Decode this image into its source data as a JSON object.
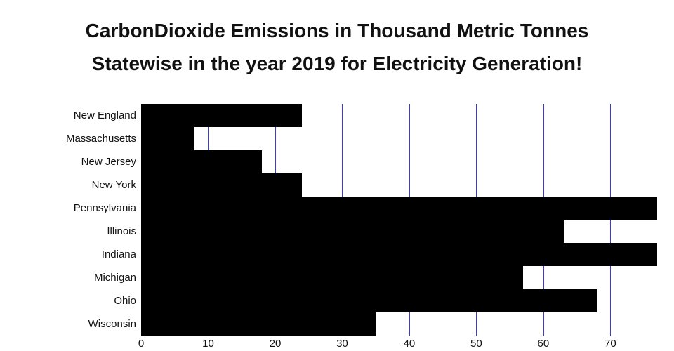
{
  "chart_data": {
    "type": "bar",
    "orientation": "horizontal",
    "title_line1": "CarbonDioxide Emissions in Thousand Metric Tonnes",
    "title_line2": "Statewise in the year 2019 for Electricity Generation!",
    "categories": [
      "New England",
      "Massachusetts",
      "New Jersey",
      "New York",
      "Pennsylvania",
      "Illinois",
      "Indiana",
      "Michigan",
      "Ohio",
      "Wisconsin"
    ],
    "values": [
      24,
      8,
      18,
      24,
      77,
      63,
      77,
      57,
      68,
      35
    ],
    "xticks": [
      0,
      10,
      20,
      30,
      40,
      50,
      60,
      70
    ],
    "xlim": [
      0,
      77.4
    ],
    "xlabel": "",
    "ylabel": "",
    "grid": "vertical",
    "legend": "none",
    "colors": {
      "bar": "#000000",
      "gridline": "#3b3bd9",
      "text": "#111111",
      "background": "#ffffff"
    }
  }
}
